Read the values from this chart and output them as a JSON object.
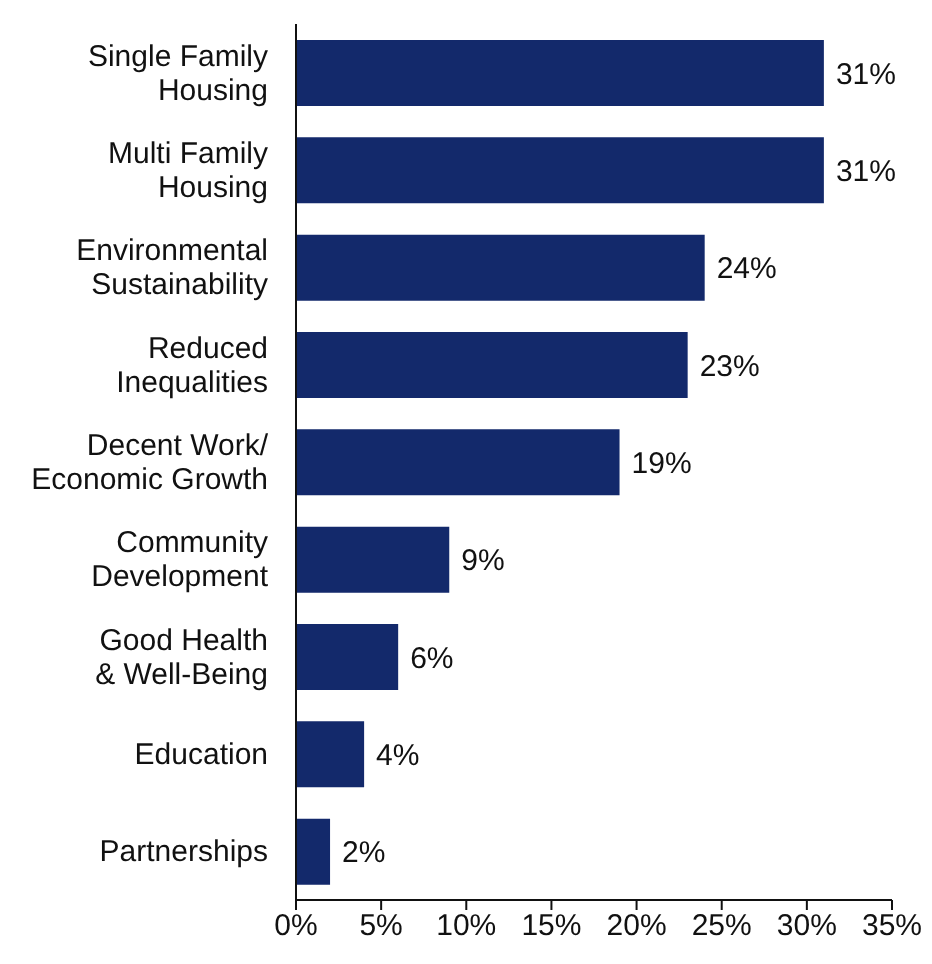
{
  "chart_data": {
    "type": "bar",
    "orientation": "horizontal",
    "categories": [
      "Single Family Housing",
      "Multi Family Housing",
      "Environmental Sustainability",
      "Reduced Inequalities",
      "Decent Work/ Economic Growth",
      "Community Development",
      "Good Health & Well-Being",
      "Education",
      "Partnerships"
    ],
    "values": [
      31,
      31,
      24,
      23,
      19,
      9,
      6,
      4,
      2
    ],
    "value_labels": [
      "31%",
      "31%",
      "24%",
      "23%",
      "19%",
      "9%",
      "6%",
      "4%",
      "2%"
    ],
    "color": "#13296b",
    "xlim": [
      0,
      35
    ],
    "xticks": [
      {
        "value": 0,
        "label": "0%"
      },
      {
        "value": 5,
        "label": "5%"
      },
      {
        "value": 10,
        "label": "10%"
      },
      {
        "value": 15,
        "label": "15%"
      },
      {
        "value": 20,
        "label": "20%"
      },
      {
        "value": 25,
        "label": "25%"
      },
      {
        "value": 30,
        "label": "30%"
      },
      {
        "value": 35,
        "label": "35%"
      }
    ],
    "grid": false,
    "legend": false
  }
}
